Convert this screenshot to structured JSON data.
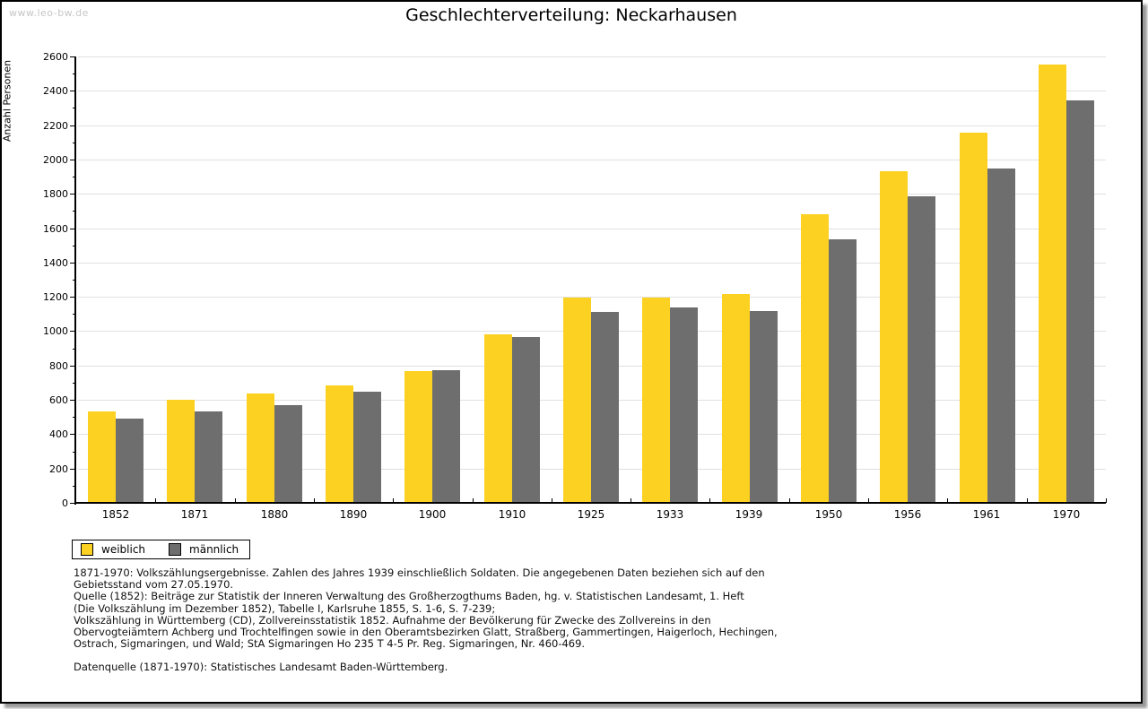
{
  "watermark": "www.leo-bw.de",
  "header": {
    "title": "Geschlechterverteilung: Neckarhausen"
  },
  "chart_data": {
    "type": "bar",
    "title": "Geschlechterverteilung: Neckarhausen",
    "xlabel": "",
    "ylabel": "Anzahl Personen",
    "categories": [
      "1852",
      "1871",
      "1880",
      "1890",
      "1900",
      "1910",
      "1925",
      "1933",
      "1939",
      "1950",
      "1956",
      "1961",
      "1970"
    ],
    "series": [
      {
        "name": "weiblich",
        "color": "#fcd122",
        "values": [
          530,
          600,
          635,
          685,
          765,
          980,
          1195,
          1195,
          1215,
          1680,
          1930,
          2155,
          2555
        ]
      },
      {
        "name": "männlich",
        "color": "#6e6e6e",
        "values": [
          490,
          535,
          570,
          650,
          775,
          965,
          1110,
          1140,
          1115,
          1535,
          1785,
          1950,
          2345
        ]
      }
    ],
    "ylim": [
      0,
      2600
    ],
    "ytick_step": 200,
    "yminor_step": 100,
    "grid": true,
    "legend_position": "bottom-left"
  },
  "legend": {
    "items": [
      {
        "label": "weiblich",
        "color": "#fcd122"
      },
      {
        "label": "männlich",
        "color": "#6e6e6e"
      }
    ]
  },
  "footnotes": [
    "1871-1970: Volkszählungsergebnisse. Zahlen des Jahres 1939 einschließlich Soldaten. Die angegebenen Daten beziehen sich auf den",
    "Gebietsstand vom 27.05.1970.",
    "Quelle (1852): Beiträge zur Statistik der Inneren Verwaltung des Großherzogthums Baden, hg. v. Statistischen Landesamt, 1. Heft",
    "(Die Volkszählung im Dezember 1852), Tabelle I, Karlsruhe 1855, S. 1-6, S. 7-239;",
    "Volkszählung in Württemberg (CD), Zollvereinsstatistik 1852. Aufnahme der Bevölkerung für Zwecke des Zollvereins in den",
    "Obervogteiämtern Achberg und Trochtelfingen sowie in den Oberamtsbezirken Glatt, Straßberg, Gammertingen, Haigerloch, Hechingen,",
    "Ostrach, Sigmaringen, und Wald; StA Sigmaringen Ho 235 T 4-5 Pr. Reg. Sigmaringen, Nr. 460-469."
  ],
  "source_line": "Datenquelle (1871-1970): Statistisches Landesamt Baden-Württemberg."
}
